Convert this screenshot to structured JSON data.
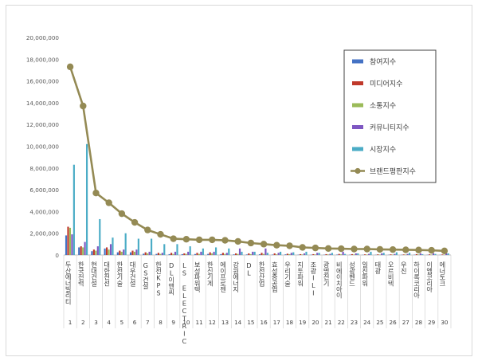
{
  "chart_data": {
    "type": "bar",
    "title": "",
    "xlabel": "",
    "ylabel": "",
    "ylim": [
      0,
      20000000
    ],
    "yticks": [
      0,
      2000000,
      4000000,
      6000000,
      8000000,
      10000000,
      12000000,
      14000000,
      16000000,
      18000000,
      20000000
    ],
    "ytick_labels": [
      "0",
      "2,000,000",
      "4,000,000",
      "6,000,000",
      "8,000,000",
      "10,000,000",
      "12,000,000",
      "14,000,000",
      "16,000,000",
      "18,000,000",
      "20,000,000"
    ],
    "grid": false,
    "legend_position": "right",
    "categories": [
      "두산에너빌리티",
      "한국전력",
      "현대건설",
      "대한전선",
      "한전기술",
      "대우건설",
      "GS건설",
      "한전KPS",
      "DL이앤씨",
      "LS ELECTRIC",
      "보성파워텍",
      "한신기계",
      "에이프로젠",
      "강원에너지",
      "DL",
      "한전산업",
      "효성중공업",
      "우리기술",
      "지투파워",
      "조광ILI",
      "광명전기",
      "비에이치아이",
      "성광벤드",
      "일진파워",
      "태광",
      "오르비텍",
      "우진",
      "하이록코리아",
      "이엠코리아",
      "에너토크"
    ],
    "ranks": [
      "1",
      "2",
      "3",
      "4",
      "5",
      "6",
      "7",
      "8",
      "9",
      "10",
      "11",
      "12",
      "13",
      "14",
      "15",
      "16",
      "17",
      "18",
      "19",
      "20",
      "21",
      "22",
      "23",
      "24",
      "25",
      "26",
      "27",
      "28",
      "29",
      "30"
    ],
    "series": [
      {
        "name": "참여지수",
        "kind": "bar",
        "color": "#4472c4",
        "values": [
          1800000,
          700000,
          350000,
          600000,
          250000,
          250000,
          120000,
          100000,
          80000,
          80000,
          90000,
          100000,
          80000,
          60000,
          50000,
          70000,
          40000,
          60000,
          30000,
          30000,
          30000,
          40000,
          30000,
          20000,
          20000,
          20000,
          20000,
          30000,
          20000,
          20000
        ]
      },
      {
        "name": "미디어지수",
        "kind": "bar",
        "color": "#c0392b",
        "values": [
          2600000,
          800000,
          500000,
          700000,
          400000,
          400000,
          250000,
          200000,
          200000,
          150000,
          200000,
          250000,
          200000,
          150000,
          150000,
          200000,
          150000,
          120000,
          80000,
          80000,
          80000,
          100000,
          80000,
          60000,
          60000,
          60000,
          50000,
          80000,
          60000,
          50000
        ]
      },
      {
        "name": "소통지수",
        "kind": "bar",
        "color": "#9bbb59",
        "values": [
          2500000,
          700000,
          400000,
          500000,
          300000,
          300000,
          150000,
          100000,
          100000,
          100000,
          100000,
          150000,
          100000,
          100000,
          80000,
          100000,
          60000,
          80000,
          50000,
          50000,
          50000,
          60000,
          50000,
          40000,
          40000,
          40000,
          40000,
          50000,
          40000,
          30000
        ]
      },
      {
        "name": "커뮤니티지수",
        "kind": "bar",
        "color": "#7e57c2",
        "values": [
          1900000,
          1200000,
          800000,
          1000000,
          500000,
          500000,
          300000,
          200000,
          300000,
          300000,
          300000,
          300000,
          200000,
          600000,
          300000,
          600000,
          200000,
          200000,
          150000,
          200000,
          100000,
          300000,
          150000,
          100000,
          150000,
          100000,
          100000,
          150000,
          150000,
          150000
        ]
      },
      {
        "name": "시장지수",
        "kind": "bar",
        "color": "#4bacc6",
        "values": [
          8300000,
          10200000,
          3300000,
          1600000,
          2000000,
          1500000,
          1500000,
          1000000,
          1000000,
          800000,
          600000,
          700000,
          600000,
          300000,
          300000,
          200000,
          300000,
          250000,
          300000,
          200000,
          200000,
          100000,
          150000,
          300000,
          200000,
          250000,
          200000,
          80000,
          100000,
          150000
        ]
      },
      {
        "name": "브랜드평판지수",
        "kind": "line",
        "color": "#948a54",
        "values": [
          17300000,
          13700000,
          5700000,
          4800000,
          3800000,
          3000000,
          2300000,
          1900000,
          1500000,
          1450000,
          1400000,
          1400000,
          1350000,
          1250000,
          1100000,
          1000000,
          900000,
          850000,
          700000,
          650000,
          600000,
          580000,
          550000,
          550000,
          520000,
          500000,
          480000,
          460000,
          430000,
          380000
        ]
      }
    ]
  }
}
